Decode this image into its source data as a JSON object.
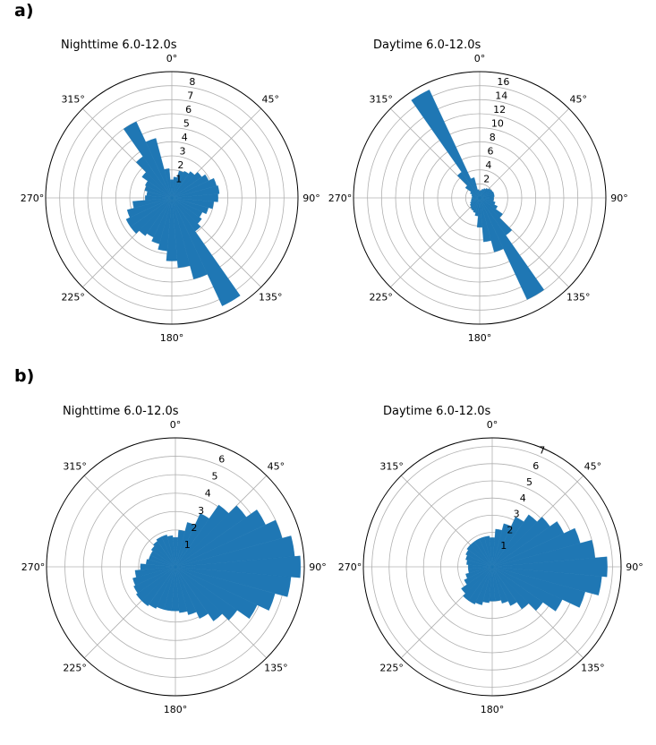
{
  "panels": [
    {
      "label": "a)"
    },
    {
      "label": "b)"
    }
  ],
  "chart_data": [
    {
      "type": "polar-bar",
      "title": "Nighttime 6.0-12.0s",
      "angle_labels": [
        "0°",
        "45°",
        "90°",
        "135°",
        "180°",
        "225°",
        "270°",
        "315°"
      ],
      "rmax": 9,
      "rticks": [
        1,
        2,
        3,
        4,
        5,
        6,
        7,
        8
      ],
      "color": "#1f77b4",
      "theta": [
        0,
        10,
        20,
        30,
        40,
        50,
        60,
        70,
        80,
        90,
        100,
        110,
        120,
        130,
        140,
        150,
        160,
        170,
        180,
        190,
        200,
        210,
        220,
        230,
        240,
        250,
        260,
        270,
        280,
        290,
        300,
        310,
        320,
        330,
        340,
        350
      ],
      "values": [
        1.3,
        1.5,
        2.0,
        2.1,
        2.3,
        2.6,
        2.9,
        3.3,
        3.4,
        3.3,
        3.0,
        2.7,
        2.4,
        2.6,
        2.9,
        8.5,
        6.0,
        5.0,
        4.5,
        3.8,
        3.4,
        3.1,
        3.3,
        3.6,
        3.6,
        3.3,
        2.8,
        1.9,
        1.8,
        2.0,
        2.1,
        2.6,
        3.6,
        6.0,
        4.4,
        2.1
      ]
    },
    {
      "type": "polar-bar",
      "title": "Daytime 6.0-12.0s",
      "angle_labels": [
        "0°",
        "45°",
        "90°",
        "135°",
        "180°",
        "225°",
        "270°",
        "315°"
      ],
      "rmax": 18,
      "rticks": [
        2,
        4,
        6,
        8,
        10,
        12,
        14,
        16
      ],
      "color": "#1f77b4",
      "theta": [
        0,
        10,
        20,
        30,
        40,
        50,
        60,
        70,
        80,
        90,
        100,
        110,
        120,
        130,
        140,
        150,
        160,
        170,
        180,
        190,
        200,
        210,
        220,
        230,
        240,
        250,
        260,
        270,
        280,
        290,
        300,
        310,
        320,
        330,
        340,
        350
      ],
      "values": [
        1.0,
        1.1,
        1.3,
        1.5,
        1.7,
        1.9,
        2.0,
        2.1,
        2.1,
        2.0,
        2.0,
        2.3,
        2.8,
        4.0,
        6.5,
        16.0,
        8.0,
        6.3,
        4.2,
        2.6,
        2.2,
        2.0,
        1.9,
        1.7,
        1.5,
        1.3,
        1.2,
        1.1,
        1.1,
        1.2,
        1.5,
        2.5,
        4.5,
        17.0,
        3.0,
        1.2
      ]
    },
    {
      "type": "polar-bar",
      "title": "Nighttime 6.0-12.0s",
      "angle_labels": [
        "0°",
        "45°",
        "90°",
        "135°",
        "180°",
        "225°",
        "270°",
        "315°"
      ],
      "rmax": 7,
      "rticks": [
        1,
        2,
        3,
        4,
        5,
        6
      ],
      "color": "#1f77b4",
      "theta": [
        0,
        10,
        20,
        30,
        40,
        50,
        60,
        70,
        80,
        90,
        100,
        110,
        120,
        130,
        140,
        150,
        160,
        170,
        180,
        190,
        200,
        210,
        220,
        230,
        240,
        250,
        260,
        270,
        280,
        290,
        300,
        310,
        320,
        330,
        340,
        350
      ],
      "values": [
        1.6,
        2.0,
        2.5,
        3.2,
        4.1,
        4.7,
        5.4,
        6.0,
        6.5,
        6.8,
        6.3,
        5.6,
        4.9,
        4.1,
        3.6,
        3.1,
        2.7,
        2.5,
        2.4,
        2.4,
        2.4,
        2.5,
        2.6,
        2.6,
        2.5,
        2.4,
        2.2,
        1.9,
        1.6,
        1.5,
        1.5,
        1.6,
        1.7,
        1.8,
        1.8,
        1.7
      ]
    },
    {
      "type": "polar-bar",
      "title": "Daytime 6.0-12.0s",
      "angle_labels": [
        "0°",
        "45°",
        "90°",
        "135°",
        "180°",
        "225°",
        "270°",
        "315°"
      ],
      "rmax": 7.5,
      "rticks": [
        1,
        2,
        3,
        4,
        5,
        6,
        7
      ],
      "color": "#1f77b4",
      "theta": [
        0,
        10,
        20,
        30,
        40,
        50,
        60,
        70,
        80,
        90,
        100,
        110,
        120,
        130,
        140,
        150,
        160,
        170,
        180,
        190,
        200,
        210,
        220,
        230,
        240,
        250,
        260,
        270,
        280,
        290,
        300,
        310,
        320,
        330,
        340,
        350
      ],
      "values": [
        1.7,
        2.2,
        2.6,
        3.2,
        3.7,
        4.1,
        4.6,
        5.3,
        6.0,
        6.7,
        6.4,
        5.6,
        4.5,
        3.6,
        3.0,
        2.5,
        2.2,
        2.0,
        2.0,
        2.1,
        2.3,
        2.4,
        2.4,
        2.2,
        1.8,
        1.6,
        1.4,
        1.4,
        1.5,
        1.6,
        1.7,
        1.8,
        1.8,
        1.8,
        1.8,
        1.8
      ]
    }
  ]
}
